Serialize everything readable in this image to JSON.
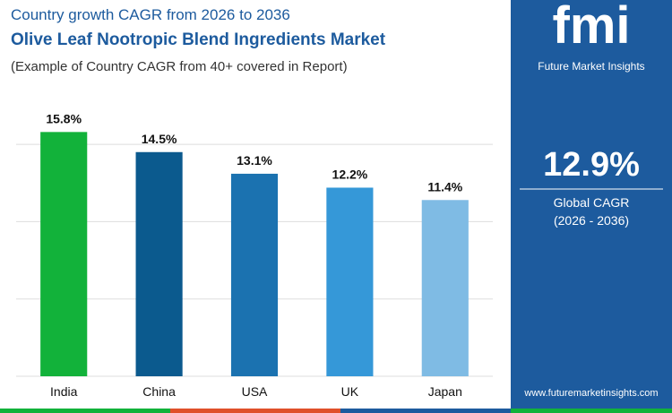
{
  "header": {
    "kicker": "Country growth CAGR from 2026 to 2036",
    "title": "Olive Leaf Nootropic Blend Ingredients Market",
    "subtitle": "(Example of Country CAGR from 40+ covered in Report)"
  },
  "chart_data": {
    "type": "bar",
    "categories": [
      "India",
      "China",
      "USA",
      "UK",
      "Japan"
    ],
    "values": [
      15.8,
      14.5,
      13.1,
      12.2,
      11.4
    ],
    "value_labels": [
      "15.8%",
      "14.5%",
      "13.1%",
      "12.2%",
      "11.4%"
    ],
    "colors": [
      "#12b23a",
      "#0b5a8e",
      "#1b72b0",
      "#3598d8",
      "#7fbbe4"
    ],
    "ylim": [
      0,
      17.5
    ],
    "yticks": [
      0,
      5,
      10,
      15
    ],
    "grid": true
  },
  "sidebar": {
    "logo": "fmi",
    "brand": "Future Market Insights",
    "cagr": "12.9%",
    "cagr_label": "Global CAGR",
    "cagr_period": "(2026 - 2036)",
    "url": "www.futuremarketinsights.com"
  }
}
